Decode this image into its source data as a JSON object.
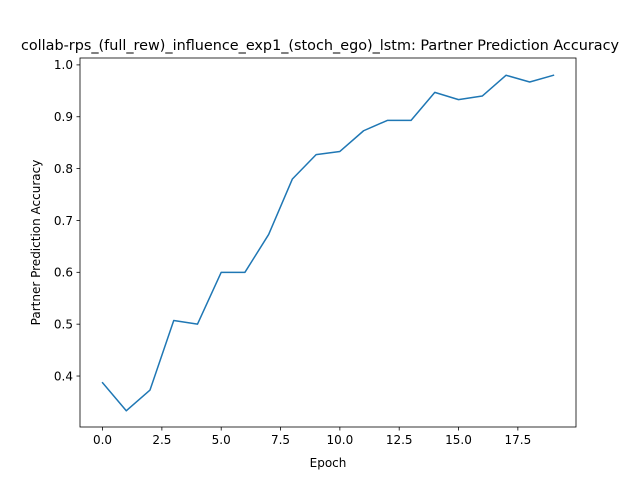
{
  "chart_data": {
    "type": "line",
    "title": "collab-rps_(full_rew)_influence_exp1_(stoch_ego)_lstm: Partner Prediction Accuracy",
    "xlabel": "Epoch",
    "ylabel": "Partner Prediction Accuracy",
    "xlim": [
      -0.95,
      19.95
    ],
    "ylim": [
      0.3017,
      1.0133
    ],
    "x_ticks": [
      0.0,
      2.5,
      5.0,
      7.5,
      10.0,
      12.5,
      15.0,
      17.5
    ],
    "x_tick_labels": [
      "0.0",
      "2.5",
      "5.0",
      "7.5",
      "10.0",
      "12.5",
      "15.0",
      "17.5"
    ],
    "y_ticks": [
      0.4,
      0.5,
      0.6,
      0.7,
      0.8,
      0.9,
      1.0
    ],
    "y_tick_labels": [
      "0.4",
      "0.5",
      "0.6",
      "0.7",
      "0.8",
      "0.9",
      "1.0"
    ],
    "grid": false,
    "legend": "none",
    "series": [
      {
        "color": "#1f77b4",
        "x": [
          0,
          1,
          2,
          3,
          4,
          5,
          6,
          7,
          8,
          9,
          10,
          11,
          12,
          13,
          14,
          15,
          16,
          17,
          18,
          19
        ],
        "y": [
          0.387,
          0.333,
          0.373,
          0.507,
          0.5,
          0.6,
          0.6,
          0.673,
          0.78,
          0.827,
          0.833,
          0.873,
          0.893,
          0.893,
          0.947,
          0.933,
          0.94,
          0.98,
          0.967,
          0.98
        ]
      }
    ]
  }
}
